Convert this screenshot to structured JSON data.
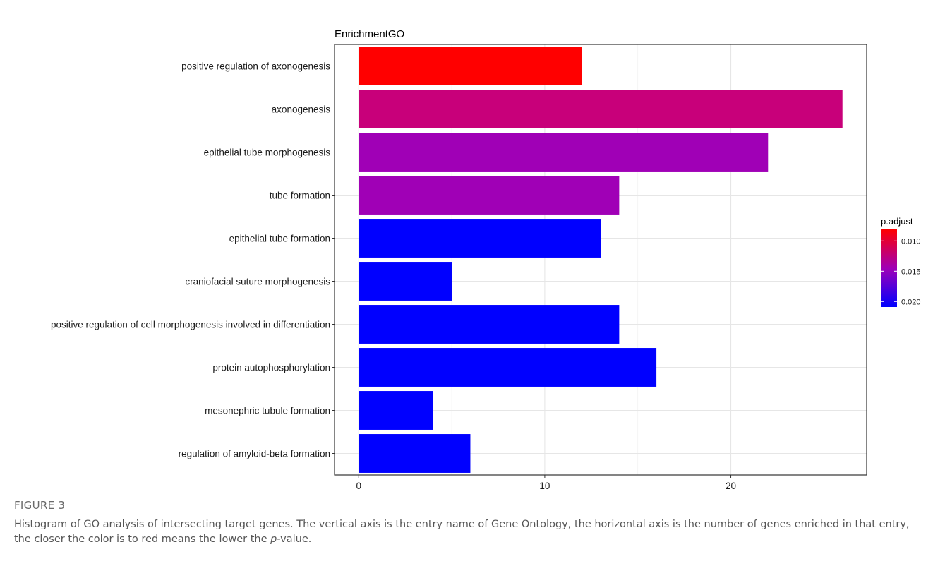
{
  "chart_data": {
    "type": "bar",
    "orientation": "horizontal",
    "title": "EnrichmentGO",
    "xlabel": "",
    "ylabel": "",
    "categories": [
      "positive regulation of axonogenesis",
      "axonogenesis",
      "epithelial tube morphogenesis",
      "tube formation",
      "epithelial tube formation",
      "craniofacial suture morphogenesis",
      "positive regulation of cell morphogenesis involved in differentiation",
      "protein autophosphorylation",
      "mesonephric tubule formation",
      "regulation of amyloid-beta formation"
    ],
    "values": [
      12,
      26,
      22,
      14,
      13,
      5,
      14,
      16,
      4,
      6
    ],
    "bar_colors": [
      "#FF0000",
      "#C8007A",
      "#A000B6",
      "#A000B6",
      "#0000FF",
      "#0000FF",
      "#0000FF",
      "#0000FF",
      "#0000FF",
      "#0000FF"
    ],
    "xlim": [
      -1.3,
      27.3
    ],
    "xticks": [
      0,
      10,
      20
    ],
    "grid": true,
    "legend": {
      "title": "p.adjust",
      "placement": "right",
      "ticks": [
        "0.010",
        "0.015",
        "0.020"
      ],
      "tick_values": [
        0.01,
        0.015,
        0.02
      ],
      "range": [
        0.0081,
        0.0209
      ],
      "color_low": "#FF0000",
      "color_high": "#0000FF"
    }
  },
  "caption": {
    "label": "FIGURE 3",
    "text_before": "Histogram of GO analysis of intersecting target genes. The vertical axis is the entry name of Gene Ontology, the horizontal axis is the number of genes enriched in that entry, the closer the color is to red means the lower the ",
    "italic": "p",
    "text_after": "-value."
  }
}
